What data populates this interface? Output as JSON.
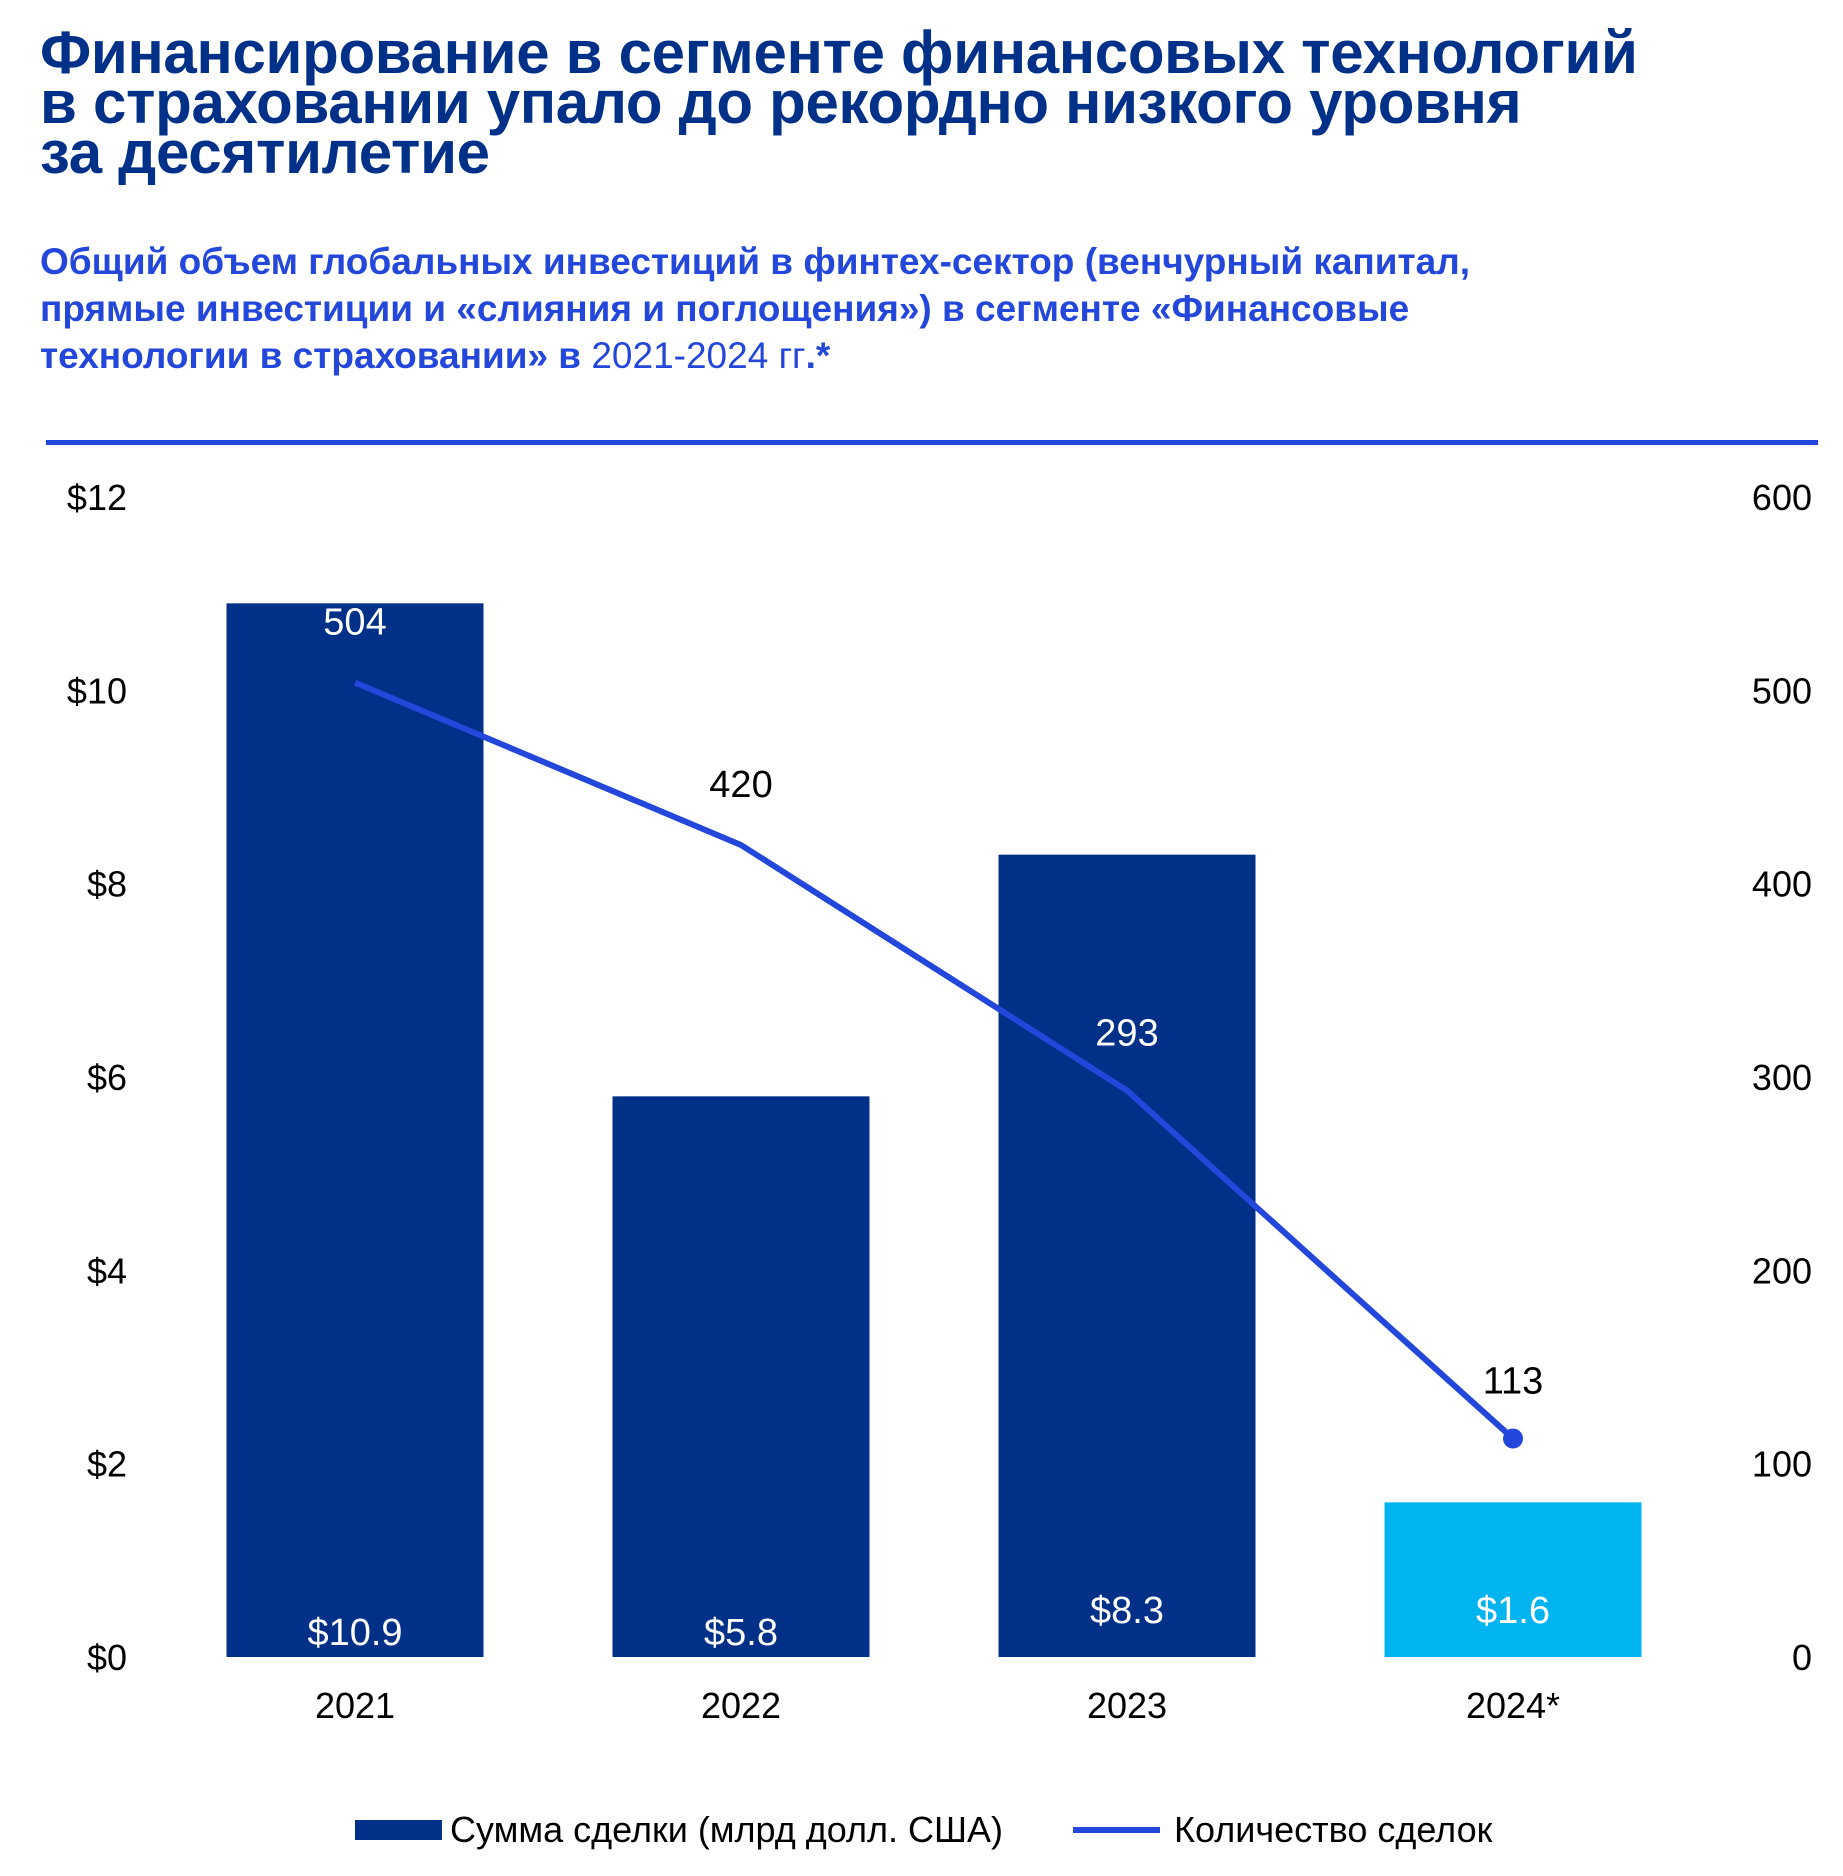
{
  "header": {
    "title_lines": [
      "Финансирование в сегменте финансовых технологий",
      "в страховании упало до рекордно низкого уровня",
      "за десятилетие"
    ],
    "subtitle_lines": [
      "Общий объем глобальных инвестиций в финтех-сектор (венчурный капитал,",
      "прямые инвестиции и «слияния и поглощения») в сегменте «Финансовые",
      "технологии в страховании» в "
    ],
    "subtitle_years": "2021-2024 гг",
    "subtitle_suffix": ".*"
  },
  "colors": {
    "title": "#003087",
    "subtitle": "#2346DB",
    "bar": "#003087",
    "bar_highlight": "#00B5EF",
    "line": "#2346DB"
  },
  "chart_data": {
    "type": "bar+line",
    "title": "Общий объем глобальных инвестиций в финтех-сектор в сегменте «Финансовые технологии в страховании» в 2021-2024 гг.*",
    "categories": [
      "2021",
      "2022",
      "2023",
      "2024*"
    ],
    "series": [
      {
        "name": "Сумма сделки (млрд долл. США)",
        "type": "bar",
        "axis": "left",
        "values": [
          10.9,
          5.8,
          8.3,
          1.6
        ],
        "labels": [
          "$10.9",
          "$5.8",
          "$8.3",
          "$1.6"
        ],
        "highlight_index": 3
      },
      {
        "name": "Количество сделок",
        "type": "line",
        "axis": "right",
        "values": [
          504,
          420,
          293,
          113
        ],
        "labels": [
          "504",
          "420",
          "293",
          "113"
        ],
        "marker_index": 3
      }
    ],
    "y_left": {
      "ylim": [
        0,
        12
      ],
      "ticks": [
        "$0",
        "$2",
        "$4",
        "$6",
        "$8",
        "$10",
        "$12"
      ],
      "tick_values": [
        0,
        2,
        4,
        6,
        8,
        10,
        12
      ]
    },
    "y_right": {
      "ylim": [
        0,
        600
      ],
      "ticks": [
        "0",
        "100",
        "200",
        "300",
        "400",
        "500",
        "600"
      ],
      "tick_values": [
        0,
        100,
        200,
        300,
        400,
        500,
        600
      ]
    },
    "xlabel": "",
    "ylabel": "",
    "grid": false,
    "legend_position": "bottom"
  },
  "legend": {
    "bar_label": "Сумма сделки (млрд долл. США)",
    "line_label": "Количество сделок"
  }
}
